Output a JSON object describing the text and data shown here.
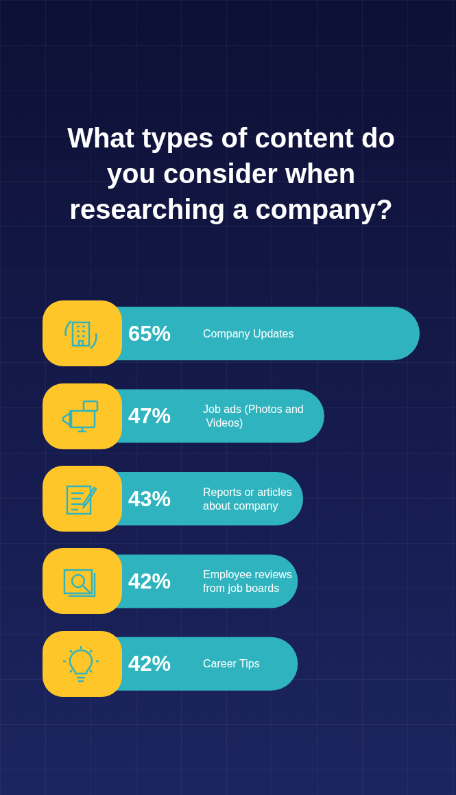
{
  "chart_data": {
    "type": "bar",
    "orientation": "horizontal",
    "title": "What types of content do you consider when researching a company?",
    "categories": [
      "Company Updates",
      "Job ads (Photos and Videos)",
      "Reports or articles about company",
      "Employee reviews from job boards",
      "Career Tips"
    ],
    "values": [
      65,
      47,
      43,
      42,
      42
    ],
    "value_labels": [
      "65%",
      "47%",
      "43%",
      "42%",
      "42%"
    ],
    "color": "#2fb4bf"
  }
}
